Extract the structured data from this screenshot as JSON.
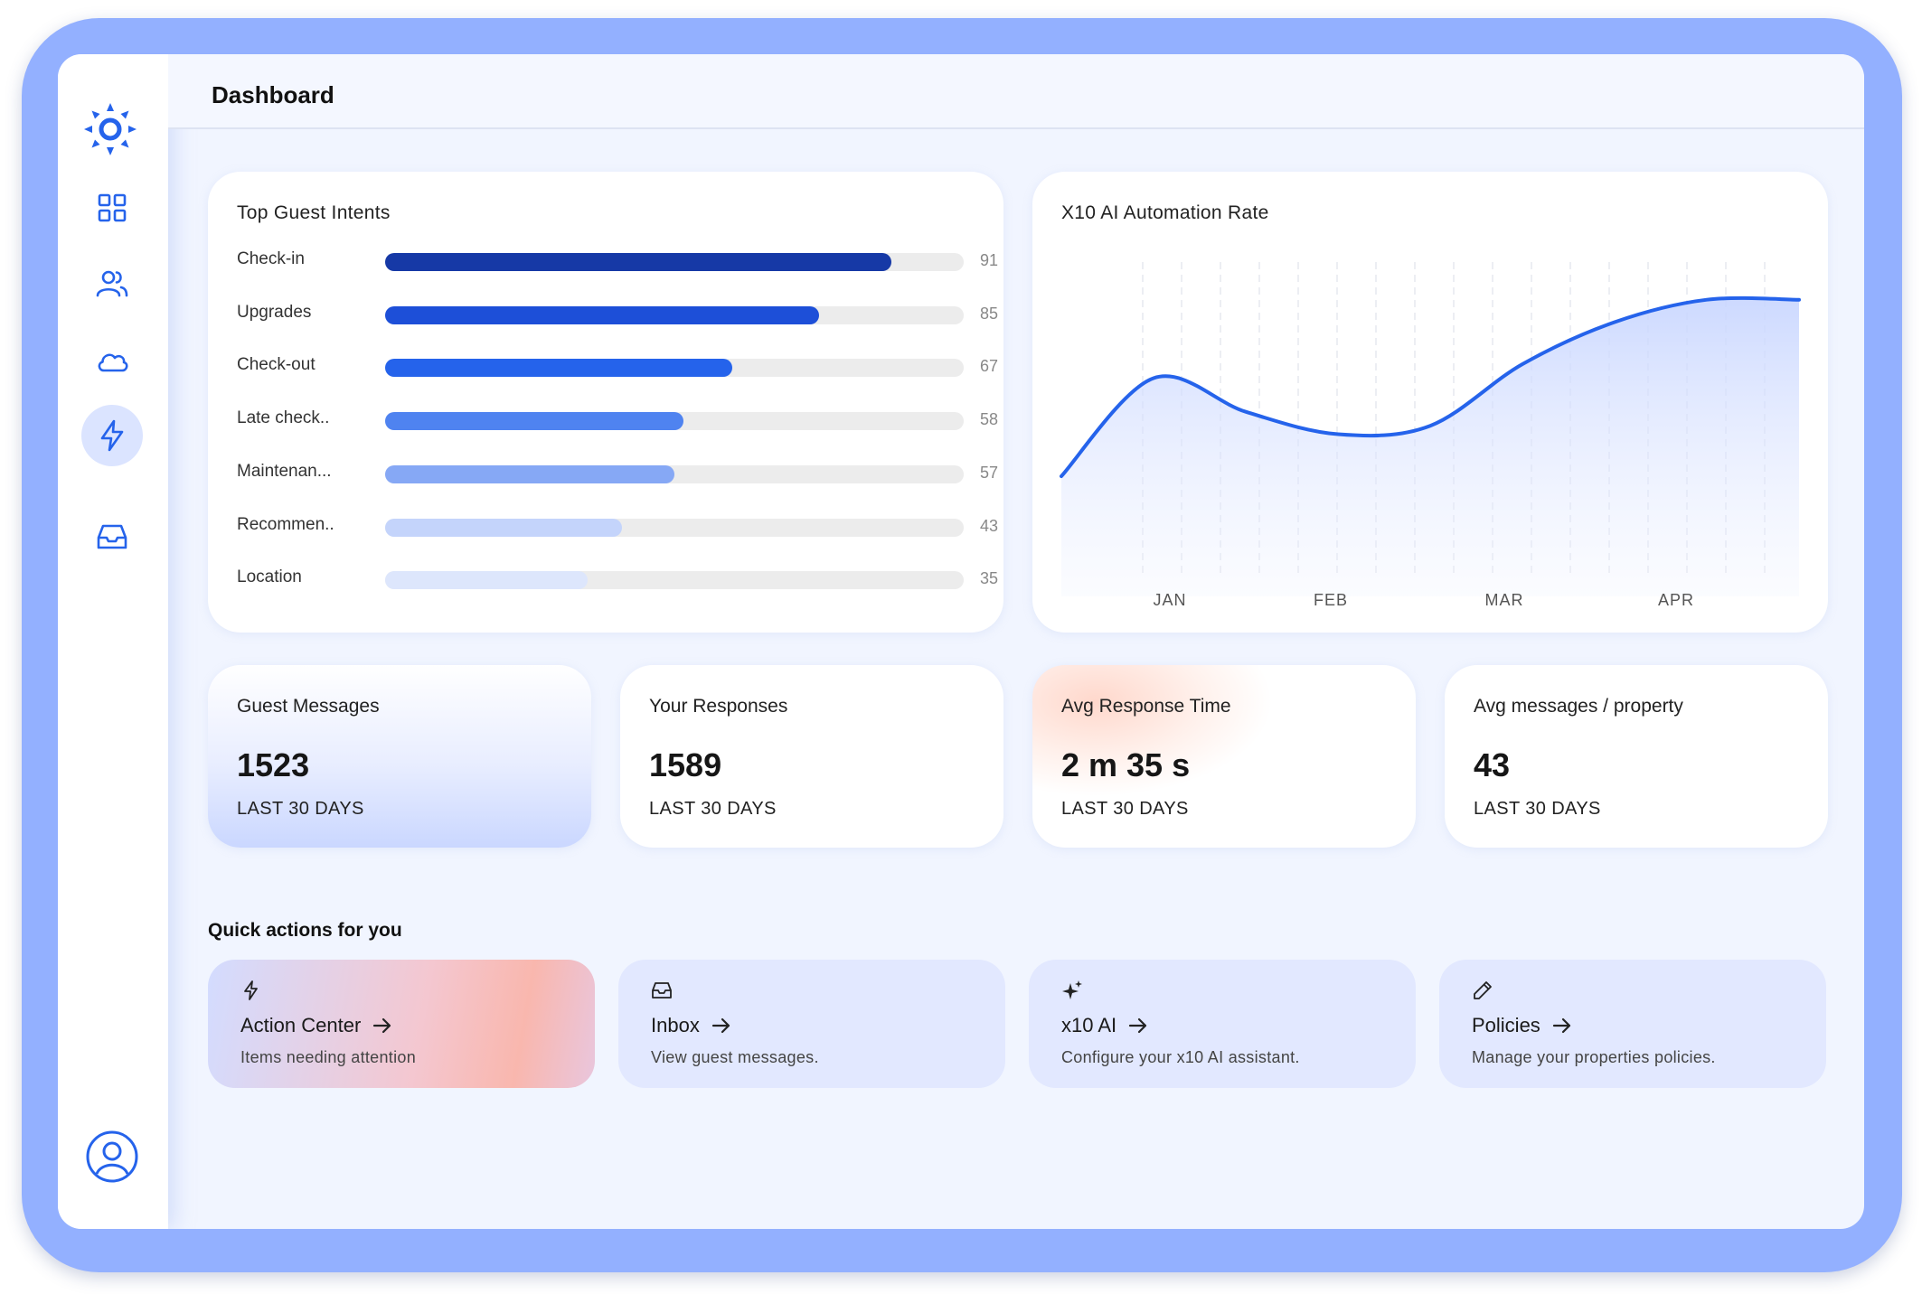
{
  "header": {
    "title": "Dashboard"
  },
  "sidebar": {
    "items": [
      {
        "name": "grid",
        "icon": "grid-icon",
        "active": false
      },
      {
        "name": "users",
        "icon": "users-icon",
        "active": false
      },
      {
        "name": "cloud",
        "icon": "cloud-icon",
        "active": false
      },
      {
        "name": "action-center",
        "icon": "lightning-icon",
        "active": true
      },
      {
        "name": "inbox",
        "icon": "inbox-icon",
        "active": false
      }
    ],
    "accent": "#2563eb"
  },
  "intents": {
    "title": "Top Guest Intents",
    "items": [
      {
        "label": "Check-in",
        "value": "91",
        "fill": 0.875,
        "color": "#1639a6"
      },
      {
        "label": "Upgrades",
        "value": "85",
        "fill": 0.75,
        "color": "#1d4fd8"
      },
      {
        "label": "Check-out",
        "value": "67",
        "fill": 0.6,
        "color": "#2563eb"
      },
      {
        "label": "Late check..",
        "value": "58",
        "fill": 0.515,
        "color": "#4f83f0"
      },
      {
        "label": "Maintenan...",
        "value": "57",
        "fill": 0.5,
        "color": "#86a8f5"
      },
      {
        "label": "Recommen..",
        "value": "43",
        "fill": 0.41,
        "color": "#c4d4fb"
      },
      {
        "label": "Location",
        "value": "35",
        "fill": 0.35,
        "color": "#dde6fc"
      }
    ]
  },
  "automation": {
    "title": "X10 AI Automation Rate",
    "line_color": "#2563eb"
  },
  "chart_data": {
    "type": "area",
    "title": "X10 AI Automation Rate",
    "categories": [
      "JAN",
      "FEB",
      "MAR",
      "APR"
    ],
    "x": [
      0,
      0.5,
      1,
      1.5,
      2,
      2.5,
      3,
      3.5,
      4
    ],
    "values": [
      0.3,
      0.65,
      0.53,
      0.45,
      0.48,
      0.7,
      0.85,
      0.93,
      0.93
    ],
    "ylim": [
      0,
      1
    ],
    "grid": "vertical-dashed"
  },
  "stats": [
    {
      "title": "Guest Messages",
      "value": "1523",
      "sub": "LAST 30 DAYS"
    },
    {
      "title": "Your Responses",
      "value": "1589",
      "sub": "LAST 30 DAYS"
    },
    {
      "title": "Avg Response Time",
      "value": "2 m 35 s",
      "sub": "LAST 30 DAYS"
    },
    {
      "title": "Avg messages / property",
      "value": "43",
      "sub": "LAST 30 DAYS"
    }
  ],
  "quick_actions": {
    "title": "Quick actions for you",
    "items": [
      {
        "title": "Action Center",
        "desc": "Items needing attention",
        "icon": "lightning-icon"
      },
      {
        "title": "Inbox",
        "desc": "View guest messages.",
        "icon": "inbox-icon"
      },
      {
        "title": "x10 AI",
        "desc": "Configure your x10 AI assistant.",
        "icon": "sparkle-icon"
      },
      {
        "title": "Policies",
        "desc": "Manage your properties policies.",
        "icon": "pencil-icon"
      }
    ]
  }
}
